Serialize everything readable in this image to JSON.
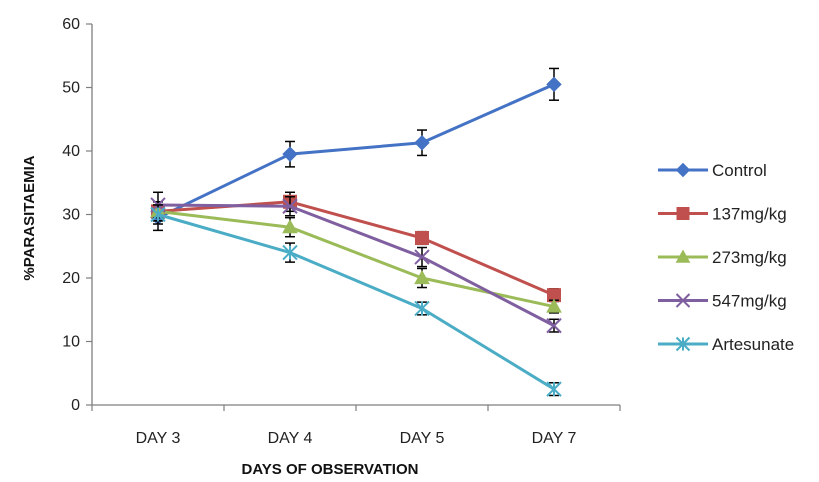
{
  "chart_data": {
    "type": "line",
    "xlabel": "DAYS OF OBSERVATION",
    "ylabel": "%PARASITAEMIA",
    "categories": [
      "DAY 3",
      "DAY 4",
      "DAY 5",
      "DAY 7"
    ],
    "ylim": [
      0,
      60
    ],
    "yticks": [
      0,
      10,
      20,
      30,
      40,
      50,
      60
    ],
    "grid": false,
    "error_bars": true,
    "legend_position": "right",
    "series": [
      {
        "name": "Control",
        "color": "#4472C4",
        "marker": "diamond",
        "values": [
          29.5,
          39.5,
          41.3,
          50.5
        ],
        "errors": [
          2.0,
          2.0,
          2.0,
          2.5
        ]
      },
      {
        "name": "137mg/kg",
        "color": "#C0504D",
        "marker": "square",
        "values": [
          30.5,
          32.0,
          26.3,
          17.3
        ],
        "errors": [
          1.5,
          1.5,
          1.0,
          1.0
        ]
      },
      {
        "name": "273mg/kg",
        "color": "#9BBB59",
        "marker": "triangle",
        "values": [
          30.5,
          28.0,
          20.0,
          15.5
        ],
        "errors": [
          1.5,
          1.5,
          1.5,
          1.0
        ]
      },
      {
        "name": "547mg/kg",
        "color": "#7F5F9F",
        "marker": "x",
        "values": [
          31.5,
          31.3,
          23.3,
          12.5
        ],
        "errors": [
          2.0,
          1.5,
          1.5,
          1.0
        ]
      },
      {
        "name": "Artesunate",
        "color": "#4BACC6",
        "marker": "asterisk",
        "values": [
          30.0,
          24.0,
          15.2,
          2.5
        ],
        "errors": [
          1.5,
          1.5,
          1.0,
          1.0
        ]
      }
    ]
  }
}
